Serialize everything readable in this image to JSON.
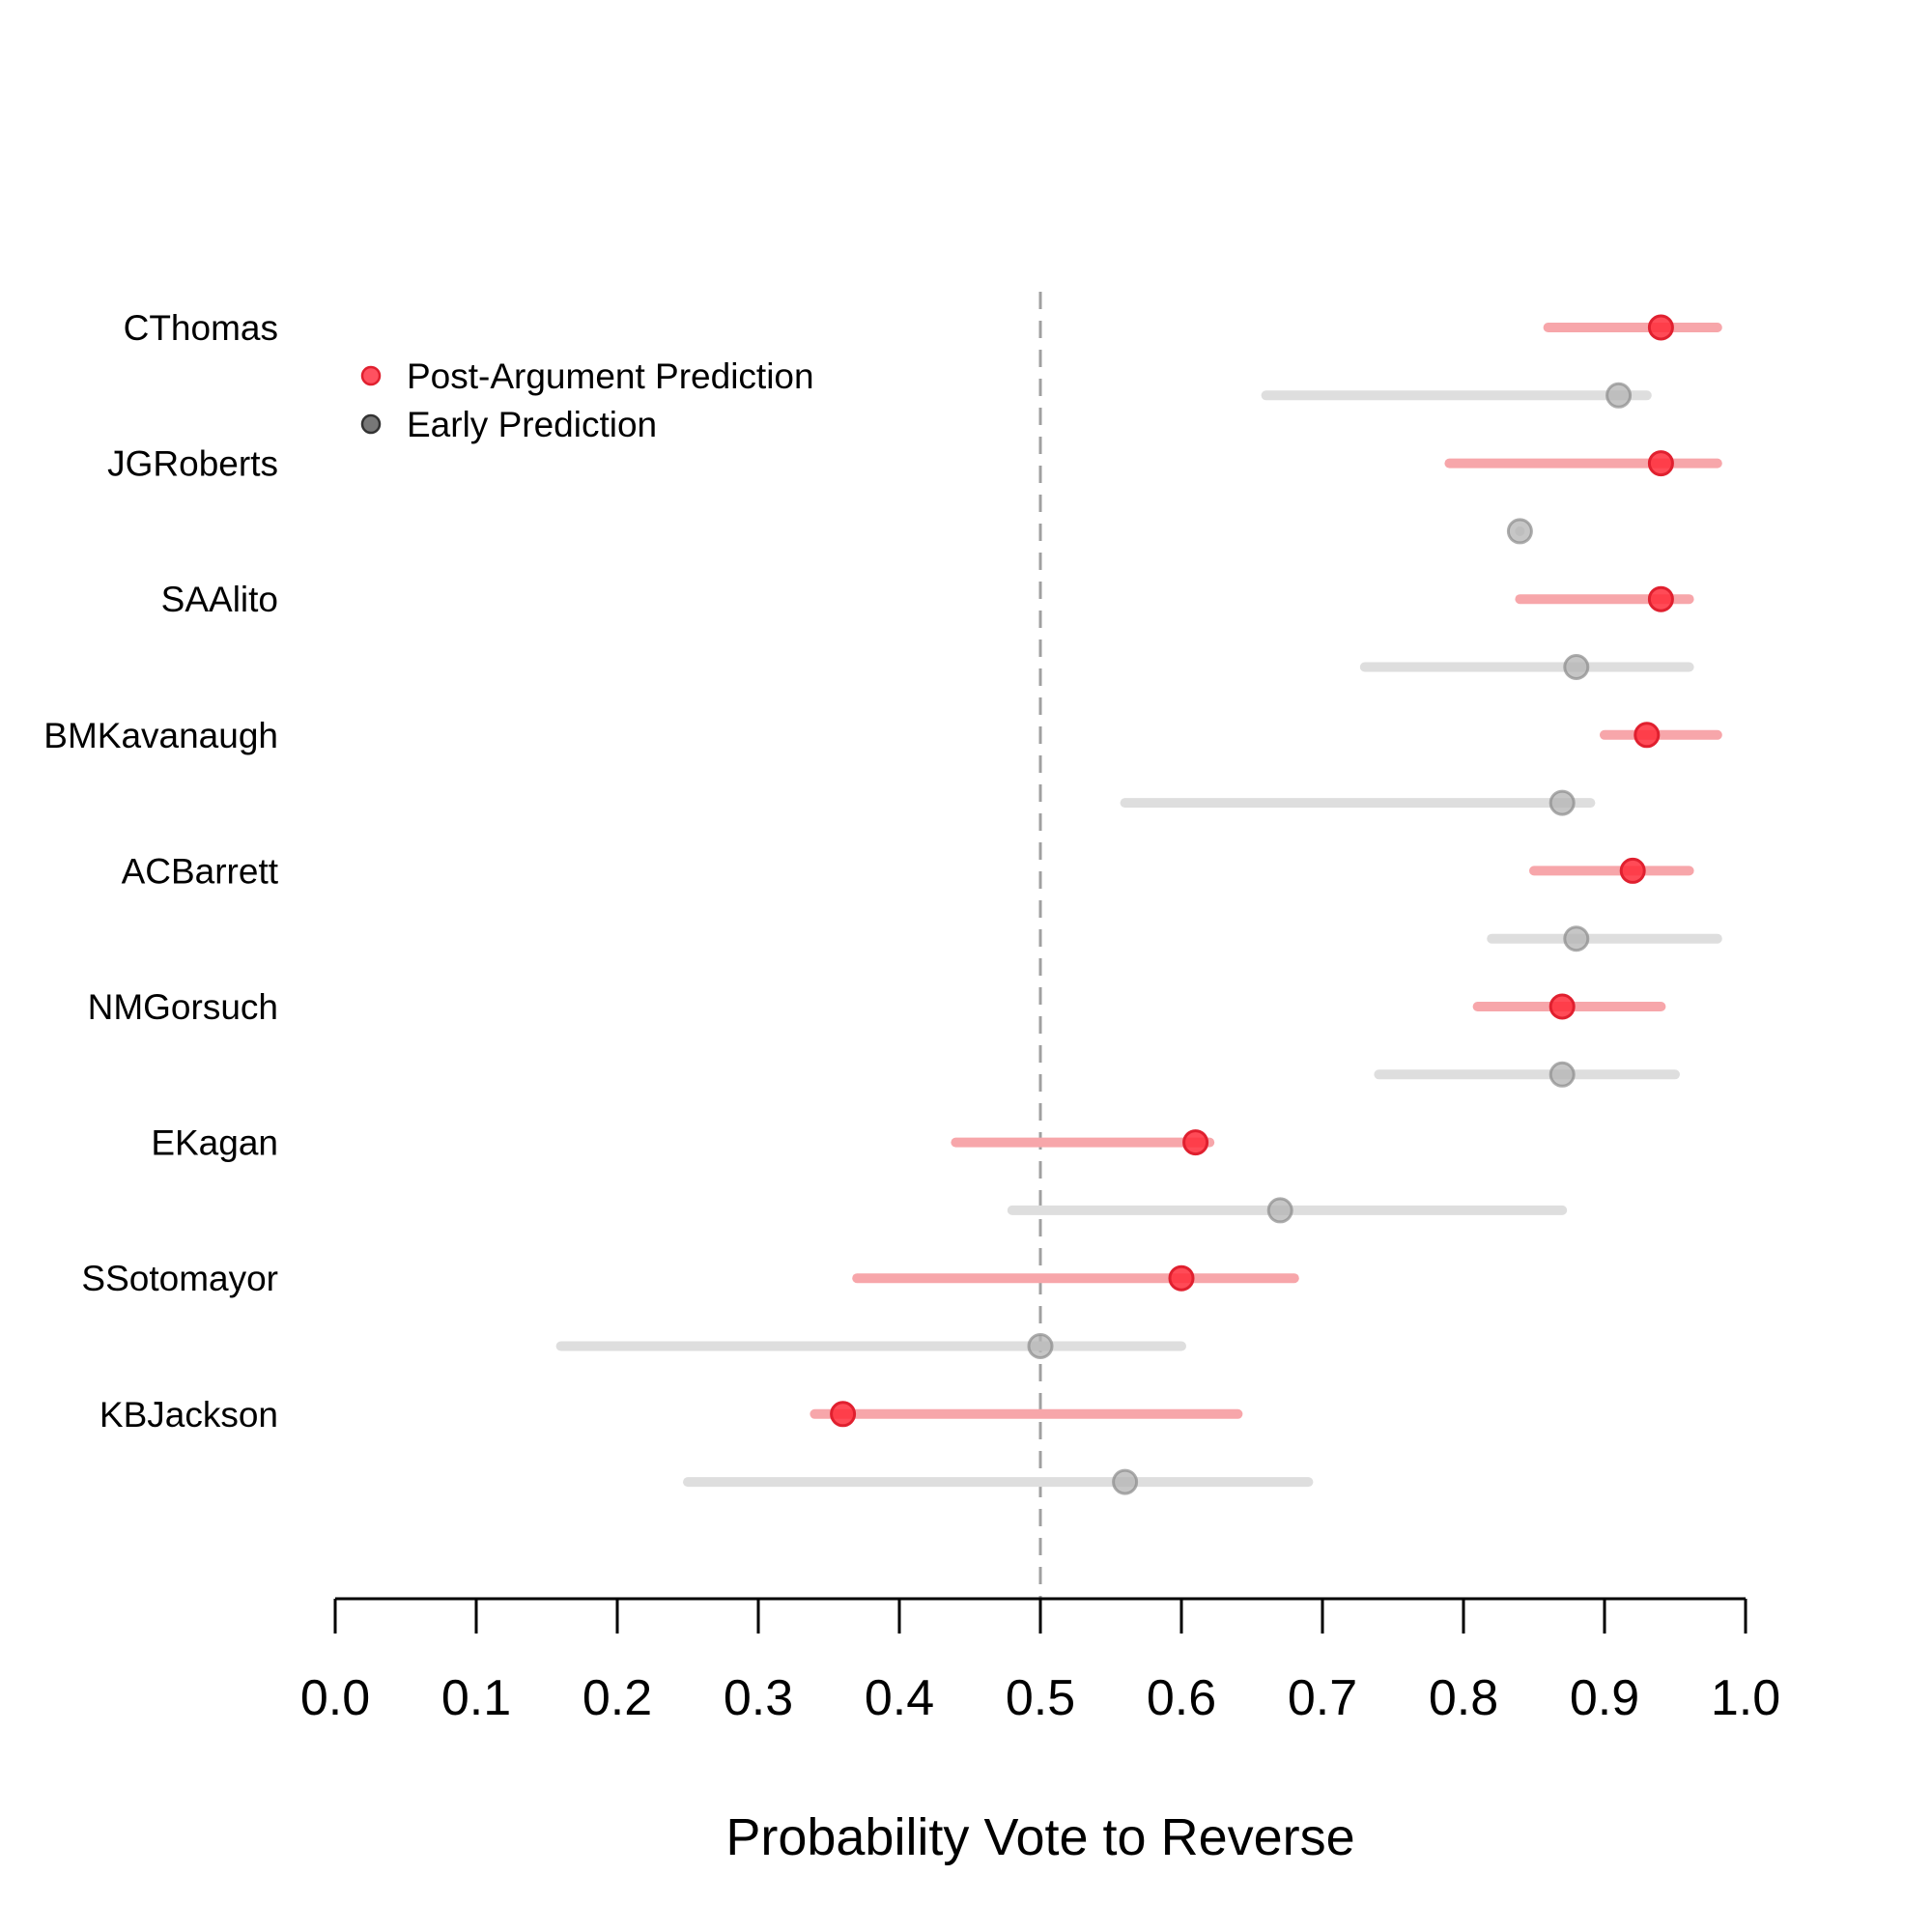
{
  "chart_data": {
    "type": "dot-interval",
    "title": "",
    "xlabel": "Probability Vote to Reverse",
    "ylabel": "",
    "xlim": [
      0.0,
      1.0
    ],
    "xticks": [
      "0.0",
      "0.1",
      "0.2",
      "0.3",
      "0.4",
      "0.5",
      "0.6",
      "0.7",
      "0.8",
      "0.9",
      "1.0"
    ],
    "reference_line": 0.5,
    "legend": {
      "placement": "top-left",
      "entries": [
        {
          "name": "Post-Argument Prediction",
          "color": "#ff3344"
        },
        {
          "name": "Early Prediction",
          "color": "#555555"
        }
      ]
    },
    "colors": {
      "post_point": "#ff2b3a",
      "post_interval": "#f7a6aa",
      "early_point": "#b3b3b3",
      "early_interval": "#dedede",
      "reference_line": "#a0a0a0"
    },
    "justices": [
      {
        "name": "CThomas",
        "post": {
          "estimate": 0.94,
          "low": 0.86,
          "high": 0.98
        },
        "early": {
          "estimate": 0.91,
          "low": 0.66,
          "high": 0.93
        }
      },
      {
        "name": "JGRoberts",
        "post": {
          "estimate": 0.94,
          "low": 0.79,
          "high": 0.98
        },
        "early": {
          "estimate": 0.84,
          "low": 0.84,
          "high": 0.84
        }
      },
      {
        "name": "SAAlito",
        "post": {
          "estimate": 0.94,
          "low": 0.84,
          "high": 0.96
        },
        "early": {
          "estimate": 0.88,
          "low": 0.73,
          "high": 0.96
        }
      },
      {
        "name": "BMKavanaugh",
        "post": {
          "estimate": 0.93,
          "low": 0.9,
          "high": 0.98
        },
        "early": {
          "estimate": 0.87,
          "low": 0.56,
          "high": 0.89
        }
      },
      {
        "name": "ACBarrett",
        "post": {
          "estimate": 0.92,
          "low": 0.85,
          "high": 0.96
        },
        "early": {
          "estimate": 0.88,
          "low": 0.82,
          "high": 0.98
        }
      },
      {
        "name": "NMGorsuch",
        "post": {
          "estimate": 0.87,
          "low": 0.81,
          "high": 0.94
        },
        "early": {
          "estimate": 0.87,
          "low": 0.74,
          "high": 0.95
        }
      },
      {
        "name": "EKagan",
        "post": {
          "estimate": 0.61,
          "low": 0.44,
          "high": 0.62
        },
        "early": {
          "estimate": 0.67,
          "low": 0.48,
          "high": 0.87
        }
      },
      {
        "name": "SSotomayor",
        "post": {
          "estimate": 0.6,
          "low": 0.37,
          "high": 0.68
        },
        "early": {
          "estimate": 0.5,
          "low": 0.16,
          "high": 0.6
        }
      },
      {
        "name": "KBJackson",
        "post": {
          "estimate": 0.36,
          "low": 0.34,
          "high": 0.64
        },
        "early": {
          "estimate": 0.56,
          "low": 0.25,
          "high": 0.69
        }
      }
    ]
  }
}
